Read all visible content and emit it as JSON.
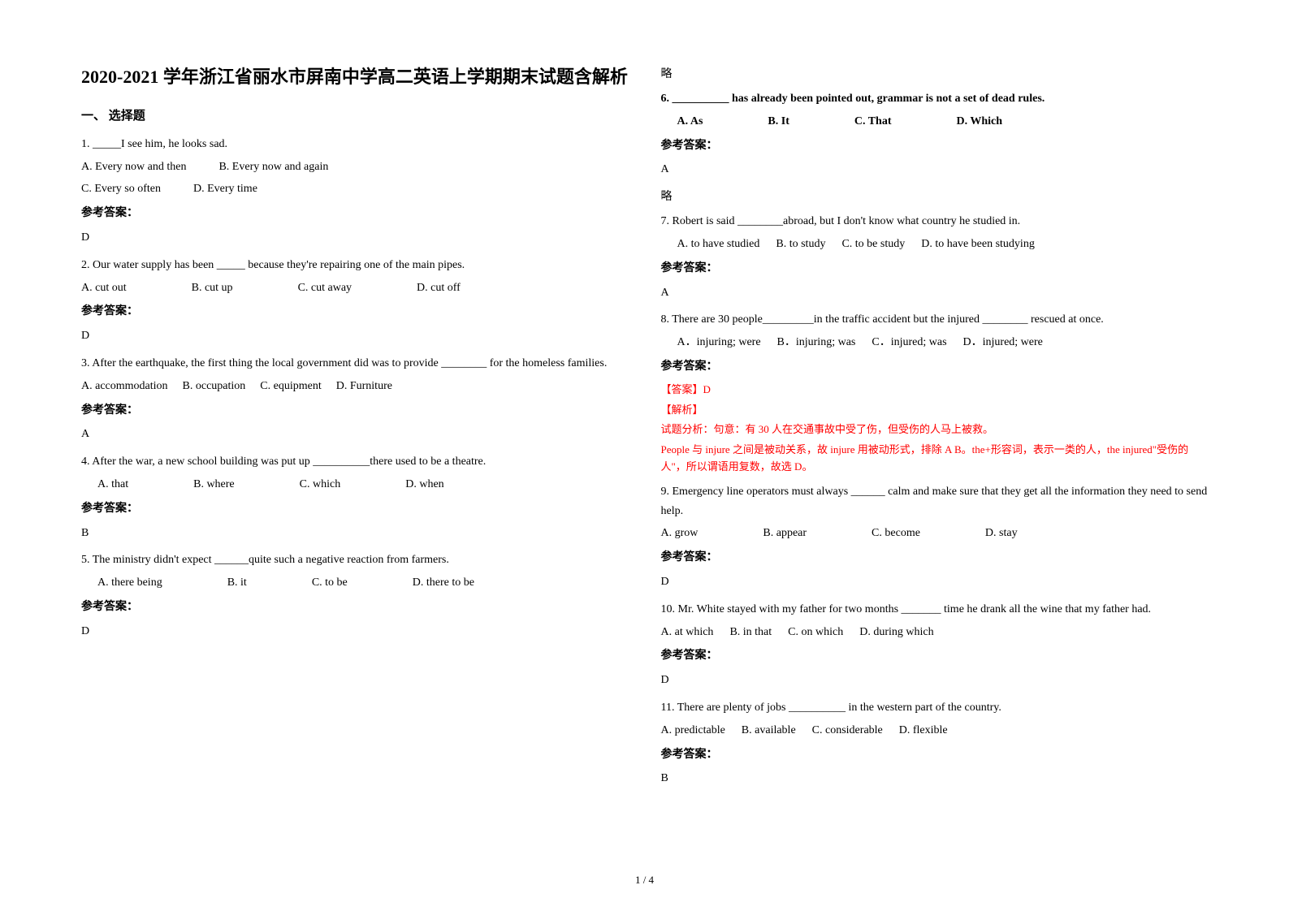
{
  "title": "2020-2021 学年浙江省丽水市屏南中学高二英语上学期期末试题含解析",
  "section1": "一、 选择题",
  "q1": {
    "text": "1. _____I see him, he looks sad.",
    "optA": "A. Every now and then",
    "optB": "B. Every now and again",
    "optC": "C. Every so often",
    "optD": "D. Every time",
    "answerLabel": "参考答案：",
    "answer": "D"
  },
  "q2": {
    "text": "2. Our water supply has been _____ because they're repairing one of the main pipes.",
    "optA": "A. cut out",
    "optB": "B. cut up",
    "optC": "C. cut away",
    "optD": "D. cut off",
    "answerLabel": "参考答案：",
    "answer": "D"
  },
  "q3": {
    "text": "3. After the earthquake, the first thing the local government did was to provide ________ for the homeless families.",
    "optA": "A. accommodation",
    "optB": "B. occupation",
    "optC": "C. equipment",
    "optD": "D. Furniture",
    "answerLabel": "参考答案：",
    "answer": "A"
  },
  "q4": {
    "text": "4. After the war, a new school building was put up __________there used to be a theatre.",
    "optA": "A. that",
    "optB": "B. where",
    "optC": "C. which",
    "optD": "D. when",
    "answerLabel": "参考答案：",
    "answer": "B"
  },
  "q5": {
    "text": "5. The ministry didn't expect ______quite such a negative reaction from farmers.",
    "optA": "A. there being",
    "optB": "B. it",
    "optC": "C. to be",
    "optD": "D. there to be",
    "answerLabel": "参考答案：",
    "answer": "D"
  },
  "omit1": "略",
  "q6": {
    "text": "6. __________ has already been pointed out, grammar is not a set of dead rules.",
    "optA": "A. As",
    "optB": "B. It",
    "optC": "C. That",
    "optD": "D. Which",
    "answerLabel": "参考答案：",
    "answer": "A"
  },
  "omit2": "略",
  "q7": {
    "text": "7. Robert is said ________abroad, but I don't know what country he studied in.",
    "optA": "A. to have studied",
    "optB": "B. to study",
    "optC": "C. to be study",
    "optD": "D. to have been studying",
    "answerLabel": "参考答案：",
    "answer": "A"
  },
  "q8": {
    "text": "8. There are 30 people_________in the traffic accident but the injured ________ rescued at once.",
    "optA": "A．injuring; were",
    "optB": "B．injuring; was",
    "optC": "C．injured; was",
    "optD": "D．injured; were",
    "answerLabel": "参考答案：",
    "exp1": "【答案】D",
    "exp2": "【解析】",
    "exp3": "试题分析：句意：有 30 人在交通事故中受了伤，但受伤的人马上被救。",
    "exp4": "People 与 injure 之间是被动关系，故 injure 用被动形式，排除 A B。the+形容词，表示一类的人，the injured\"受伤的人\"，所以谓语用复数，故选 D。"
  },
  "q9": {
    "text": "9. Emergency line operators must always ______ calm and make sure that they get all the information they need to send help.",
    "optA": "A. grow",
    "optB": "B. appear",
    "optC": "C. become",
    "optD": "D. stay",
    "answerLabel": "参考答案：",
    "answer": "D"
  },
  "q10": {
    "text": "10. Mr. White stayed with my father for two months _______ time he drank all the wine that my father had.",
    "optA": "A. at which",
    "optB": "B. in that",
    "optC": "C. on which",
    "optD": "D. during which",
    "answerLabel": "参考答案：",
    "answer": "D"
  },
  "q11": {
    "text": "11. There are plenty of jobs __________ in the western part of the country.",
    "optA": "A. predictable",
    "optB": "B. available",
    "optC": "C. considerable",
    "optD": "D. flexible",
    "answerLabel": "参考答案：",
    "answer": "B"
  },
  "pageNumber": "1 / 4"
}
